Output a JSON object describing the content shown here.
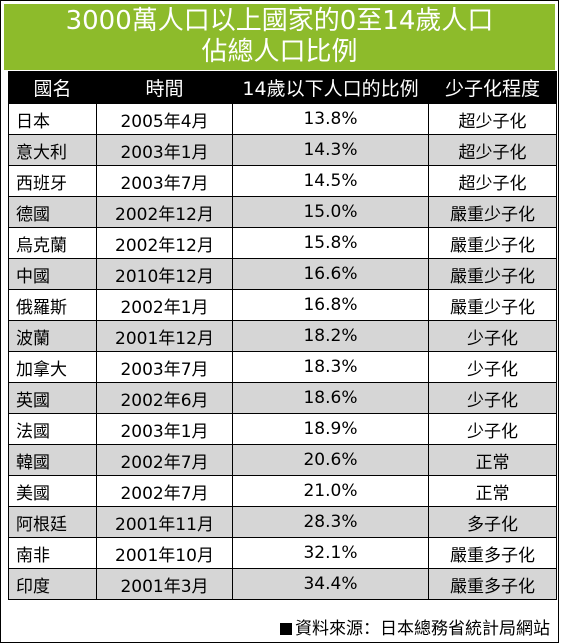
{
  "title": {
    "line1": "3000萬人口以上國家的0至14歲人口",
    "line2": "佔總人口比例"
  },
  "table": {
    "headers": [
      "國名",
      "時間",
      "14歲以下人口的比例",
      "少子化程度"
    ],
    "rows": [
      [
        "日本",
        "2005年4月",
        "13.8%",
        "超少子化"
      ],
      [
        "意大利",
        "2003年1月",
        "14.3%",
        "超少子化"
      ],
      [
        "西班牙",
        "2003年7月",
        "14.5%",
        "超少子化"
      ],
      [
        "德國",
        "2002年12月",
        "15.0%",
        "嚴重少子化"
      ],
      [
        "烏克蘭",
        "2002年12月",
        "15.8%",
        "嚴重少子化"
      ],
      [
        "中國",
        "2010年12月",
        "16.6%",
        "嚴重少子化"
      ],
      [
        "俄羅斯",
        "2002年1月",
        "16.8%",
        "嚴重少子化"
      ],
      [
        "波蘭",
        "2001年12月",
        "18.2%",
        "少子化"
      ],
      [
        "加拿大",
        "2003年7月",
        "18.3%",
        "少子化"
      ],
      [
        "英國",
        "2002年6月",
        "18.6%",
        "少子化"
      ],
      [
        "法國",
        "2003年1月",
        "18.9%",
        "少子化"
      ],
      [
        "韓國",
        "2002年7月",
        "20.6%",
        "正常"
      ],
      [
        "美國",
        "2002年7月",
        "21.0%",
        "正常"
      ],
      [
        "阿根廷",
        "2001年11月",
        "28.3%",
        "多子化"
      ],
      [
        "南非",
        "2001年10月",
        "32.1%",
        "嚴重多子化"
      ],
      [
        "印度",
        "2001年3月",
        "34.4%",
        "嚴重多子化"
      ]
    ]
  },
  "source": "資料來源：日本總務省統計局網站",
  "colors": {
    "title_bg": "#8dbb2b",
    "header_bg": "#000000",
    "row_shade": "#d6d6d6"
  }
}
